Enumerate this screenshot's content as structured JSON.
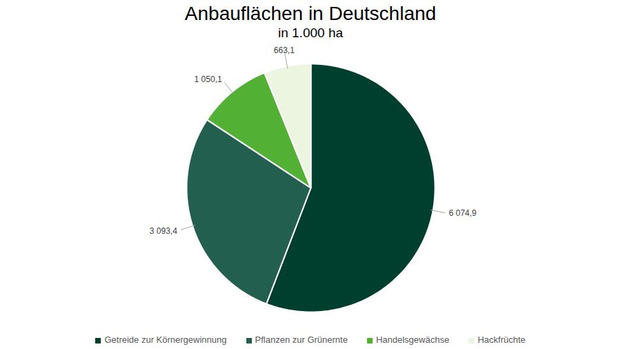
{
  "chart_data": {
    "type": "pie",
    "title": "Anbauflächen in Deutschland",
    "subtitle": "in 1.000 ha",
    "categories": [
      "Getreide zur Körnergewinnung",
      "Pflanzen zur Grünernte",
      "Handelsgewächse",
      "Hackfrüchte"
    ],
    "values": [
      6074.9,
      3093.4,
      1050.1,
      663.1
    ],
    "value_labels": [
      "6 074,9",
      "3 093,4",
      "1 050,1",
      "663,1"
    ],
    "colors": [
      "#003f2e",
      "#235f4f",
      "#52b135",
      "#ebf5df"
    ],
    "data_labels": true,
    "legend": "bottom"
  }
}
